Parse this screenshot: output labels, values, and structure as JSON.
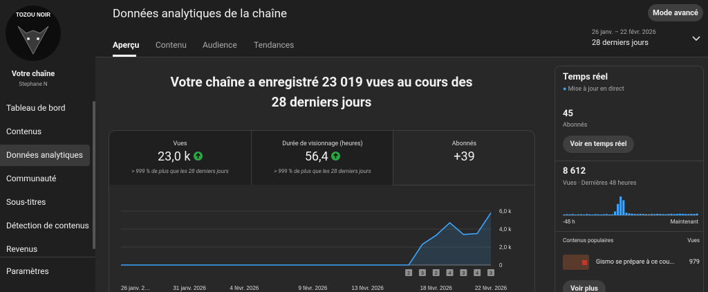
{
  "sidebar": {
    "logo_text": "TOZOU NOIR",
    "channel_label": "Votre chaîne",
    "channel_name": "Stephane N",
    "nav": [
      "Tableau de bord",
      "Contenus",
      "Données analytiques",
      "Communauté",
      "Sous-titres",
      "Détection de contenus",
      "Revenus"
    ],
    "settings": "Paramètres"
  },
  "header": {
    "title": "Données analytiques de la chaîne",
    "advanced_button": "Mode avancé",
    "tabs": [
      "Aperçu",
      "Contenu",
      "Audience",
      "Tendances"
    ],
    "date_range": "26 janv. – 22 févr. 2026",
    "period": "28 derniers jours"
  },
  "headline": "Votre chaîne a enregistré 23 019 vues au cours des 28 derniers jours",
  "metrics": [
    {
      "label": "Vues",
      "value": "23,0 k",
      "change": "> 999 % de plus que les 28 derniers jours"
    },
    {
      "label": "Durée de visionnage (heures)",
      "value": "56,4",
      "change": "> 999 % de plus que les 28 derniers jours"
    },
    {
      "label": "Abonnés",
      "value": "+39"
    }
  ],
  "chart": {
    "type": "line",
    "categories": [
      "26 janv. 2…",
      null,
      null,
      null,
      null,
      "31 janv. 2026",
      null,
      null,
      null,
      "4 févr. 2026",
      null,
      null,
      null,
      null,
      "9 févr. 2026",
      null,
      null,
      null,
      "13 févr. 2026",
      null,
      null,
      null,
      null,
      "18 févr. 2026",
      null,
      null,
      null,
      "22 févr. 2026"
    ],
    "values": [
      0,
      0,
      0,
      0,
      0,
      0,
      0,
      0,
      0,
      0,
      0,
      0,
      0,
      0,
      0,
      0,
      0,
      0,
      0,
      0,
      0,
      0,
      2300,
      3300,
      4700,
      3400,
      3500,
      5800
    ],
    "video_markers": [
      null,
      null,
      null,
      null,
      null,
      null,
      null,
      null,
      null,
      null,
      null,
      null,
      null,
      null,
      null,
      null,
      null,
      null,
      null,
      null,
      null,
      2,
      3,
      2,
      4,
      3,
      4,
      3
    ],
    "ylim": [
      0,
      6000
    ],
    "yticks": [
      0,
      {
        "value": 2000,
        "label": "2,0 k"
      },
      {
        "value": 4000,
        "label": "4,0 k"
      },
      {
        "value": 6000,
        "label": "6,0 k"
      }
    ],
    "grid": true,
    "color": "#3ea6ff"
  },
  "realtime": {
    "title": "Temps réel",
    "live": "Mise à jour en direct",
    "subscribers": "45",
    "subscribers_label": "Abonnés",
    "button": "Voir en temps réel",
    "views": "8 612",
    "views_label": "Vues · Dernières 48 heures",
    "sparkline": [
      60,
      80,
      70,
      90,
      60,
      70,
      80,
      60,
      90,
      70,
      60,
      80,
      70,
      60,
      80,
      90,
      60,
      70,
      300,
      900,
      1500,
      1200,
      200,
      150,
      120,
      100,
      90,
      110,
      100,
      90,
      80,
      100,
      90,
      110,
      100,
      90,
      80,
      100,
      110,
      90,
      100,
      120,
      110,
      100,
      90,
      110,
      100,
      130
    ],
    "start_label": "-48 h",
    "end_label": "Maintenant",
    "popular_label": "Contenus populaires",
    "views_column": "Vues",
    "top_video": {
      "title": "Gismo se prépare à ce cou...",
      "views": "979"
    },
    "more_button": "Voir plus"
  }
}
